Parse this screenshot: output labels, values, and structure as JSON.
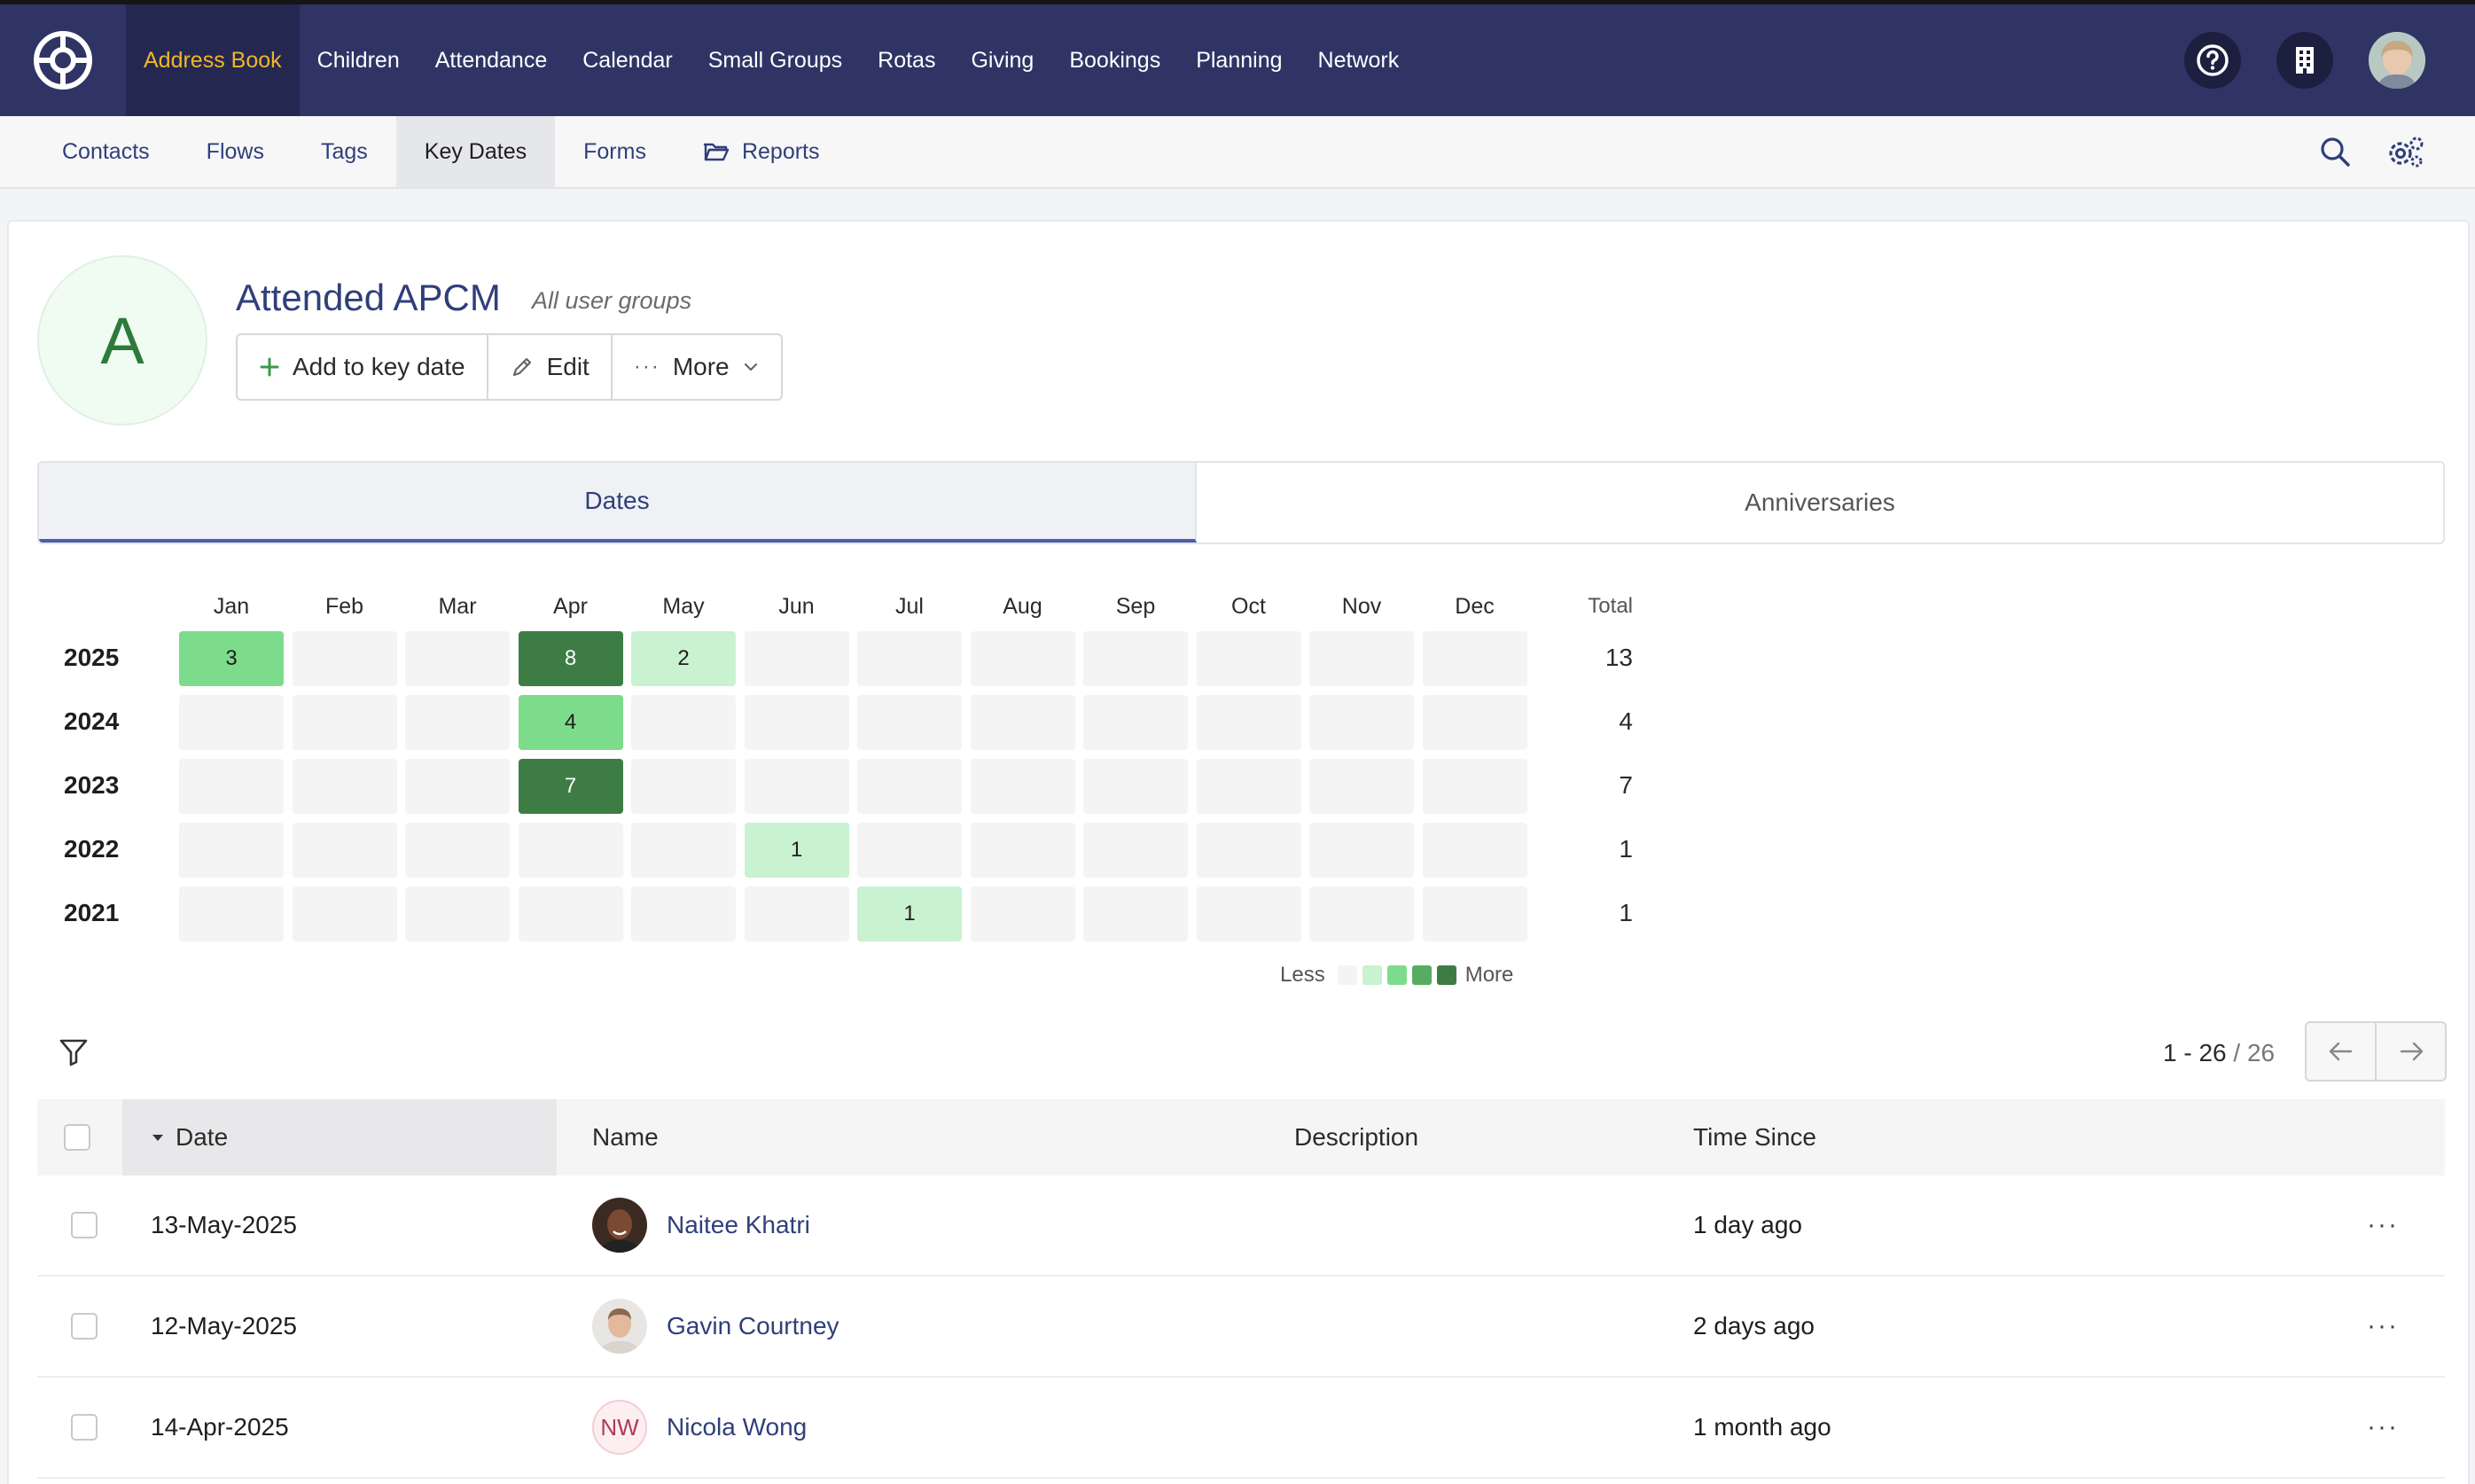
{
  "topnav": {
    "items": [
      "Address Book",
      "Children",
      "Attendance",
      "Calendar",
      "Small Groups",
      "Rotas",
      "Giving",
      "Bookings",
      "Planning",
      "Network"
    ],
    "active": "Address Book",
    "active_color": "#f1b52b",
    "background": "#2f3465"
  },
  "subnav": {
    "items": [
      "Contacts",
      "Flows",
      "Tags",
      "Key Dates",
      "Forms",
      "Reports"
    ],
    "active": "Key Dates"
  },
  "header": {
    "avatar_letter": "A",
    "title": "Attended APCM",
    "subtitle": "All user groups",
    "buttons": {
      "add": "Add to key date",
      "edit": "Edit",
      "more": "More"
    }
  },
  "tabs": {
    "dates": "Dates",
    "anniversaries": "Anniversaries"
  },
  "heatmap": {
    "months": [
      "Jan",
      "Feb",
      "Mar",
      "Apr",
      "May",
      "Jun",
      "Jul",
      "Aug",
      "Sep",
      "Oct",
      "Nov",
      "Dec"
    ],
    "total_label": "Total",
    "rows": [
      {
        "year": "2025",
        "values": [
          3,
          null,
          null,
          8,
          2,
          null,
          null,
          null,
          null,
          null,
          null,
          null
        ],
        "total": "13"
      },
      {
        "year": "2024",
        "values": [
          null,
          null,
          null,
          4,
          null,
          null,
          null,
          null,
          null,
          null,
          null,
          null
        ],
        "total": "4"
      },
      {
        "year": "2023",
        "values": [
          null,
          null,
          null,
          7,
          null,
          null,
          null,
          null,
          null,
          null,
          null,
          null
        ],
        "total": "7"
      },
      {
        "year": "2022",
        "values": [
          null,
          null,
          null,
          null,
          null,
          1,
          null,
          null,
          null,
          null,
          null,
          null
        ],
        "total": "1"
      },
      {
        "year": "2021",
        "values": [
          null,
          null,
          null,
          null,
          null,
          null,
          1,
          null,
          null,
          null,
          null,
          null
        ],
        "total": "1"
      }
    ],
    "legend": {
      "less": "Less",
      "more": "More",
      "colors": [
        "#f4f4f5",
        "#c9f2d0",
        "#7ddc8b",
        "#56ac63",
        "#3d7d45"
      ]
    }
  },
  "pager": {
    "range": "1 - 26",
    "separator": "/",
    "total": "26"
  },
  "table": {
    "columns": {
      "date": "Date",
      "name": "Name",
      "description": "Description",
      "time_since": "Time Since"
    },
    "rows": [
      {
        "date": "13-May-2025",
        "name": "Naitee Khatri",
        "description": "",
        "time_since": "1 day ago",
        "avatar": "photo"
      },
      {
        "date": "12-May-2025",
        "name": "Gavin Courtney",
        "description": "",
        "time_since": "2 days ago",
        "avatar": "photo"
      },
      {
        "date": "14-Apr-2025",
        "name": "Nicola Wong",
        "description": "",
        "time_since": "1 month ago",
        "avatar": "NW"
      }
    ]
  }
}
